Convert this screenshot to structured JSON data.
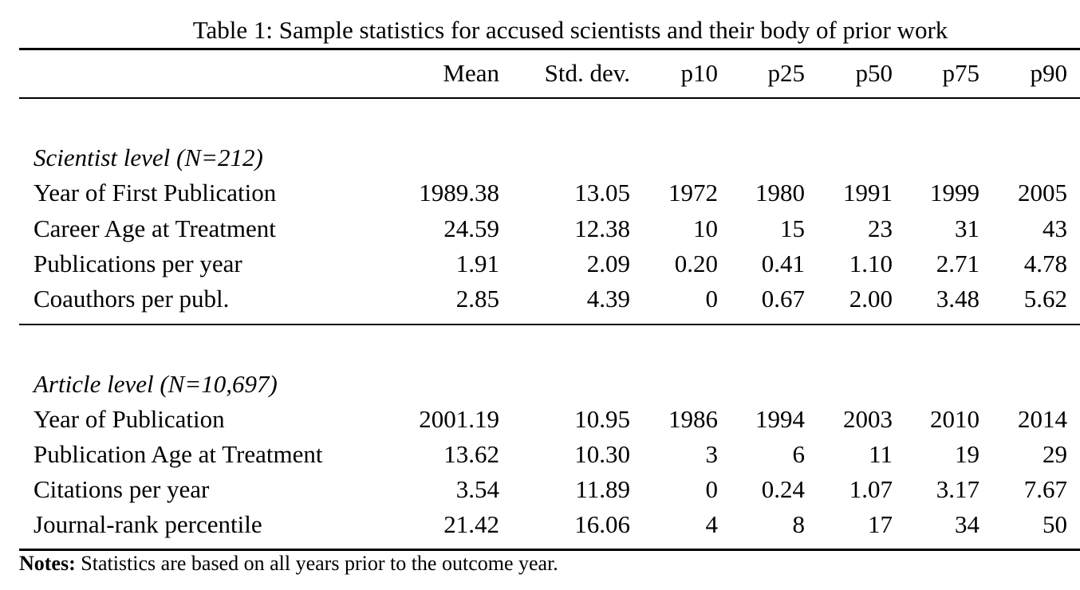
{
  "caption": "Table 1: Sample statistics for accused scientists and their body of prior work",
  "columns": [
    "Mean",
    "Std. dev.",
    "p10",
    "p25",
    "p50",
    "p75",
    "p90"
  ],
  "sections": [
    {
      "title": "Scientist level (N=212)",
      "rows": [
        {
          "label": "Year of First Publication",
          "values": [
            "1989.38",
            "13.05",
            "1972",
            "1980",
            "1991",
            "1999",
            "2005"
          ]
        },
        {
          "label": "Career Age at Treatment",
          "values": [
            "24.59",
            "12.38",
            "10",
            "15",
            "23",
            "31",
            "43"
          ]
        },
        {
          "label": "Publications per year",
          "values": [
            "1.91",
            "2.09",
            "0.20",
            "0.41",
            "1.10",
            "2.71",
            "4.78"
          ]
        },
        {
          "label": "Coauthors per publ.",
          "values": [
            "2.85",
            "4.39",
            "0",
            "0.67",
            "2.00",
            "3.48",
            "5.62"
          ]
        }
      ]
    },
    {
      "title": "Article level (N=10,697)",
      "rows": [
        {
          "label": "Year of Publication",
          "values": [
            "2001.19",
            "10.95",
            "1986",
            "1994",
            "2003",
            "2010",
            "2014"
          ]
        },
        {
          "label": "Publication Age at Treatment",
          "values": [
            "13.62",
            "10.30",
            "3",
            "6",
            "11",
            "19",
            "29"
          ]
        },
        {
          "label": "Citations per year",
          "values": [
            "3.54",
            "11.89",
            "0",
            "0.24",
            "1.07",
            "3.17",
            "7.67"
          ]
        },
        {
          "label": "Journal-rank percentile",
          "values": [
            "21.42",
            "16.06",
            "4",
            "8",
            "17",
            "34",
            "50"
          ]
        }
      ]
    }
  ],
  "notes": {
    "label": "Notes:",
    "text": " Statistics are based on all years prior to the outcome year."
  }
}
